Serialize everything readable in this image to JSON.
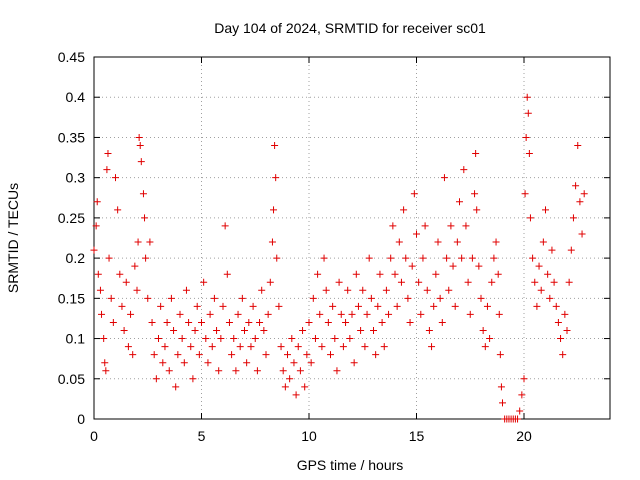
{
  "chart_data": {
    "type": "scatter",
    "title": "Day 104 of 2024, SRMTID for receiver sc01",
    "xlabel": "GPS time / hours",
    "ylabel": "SRMTID / TECUs",
    "xlim": [
      0,
      24
    ],
    "ylim": [
      0,
      0.45
    ],
    "x_ticks": [
      0,
      5,
      10,
      15,
      20
    ],
    "x_tick_labels": [
      "0",
      "5",
      "10",
      "15",
      "20"
    ],
    "y_ticks": [
      0,
      0.05,
      0.1,
      0.15,
      0.2,
      0.25,
      0.3,
      0.35,
      0.4,
      0.45
    ],
    "y_tick_labels": [
      "0",
      "0.05",
      "0.1",
      "0.15",
      "0.2",
      "0.25",
      "0.3",
      "0.35",
      "0.4",
      "0.45"
    ],
    "grid": true,
    "marker": "+",
    "color": "#e00000",
    "series": [
      {
        "name": "SRMTID",
        "points": [
          [
            0.0,
            0.21
          ],
          [
            0.1,
            0.24
          ],
          [
            0.15,
            0.27
          ],
          [
            0.2,
            0.18
          ],
          [
            0.3,
            0.16
          ],
          [
            0.35,
            0.13
          ],
          [
            0.45,
            0.1
          ],
          [
            0.5,
            0.07
          ],
          [
            0.55,
            0.06
          ],
          [
            0.6,
            0.31
          ],
          [
            0.65,
            0.33
          ],
          [
            0.7,
            0.2
          ],
          [
            0.8,
            0.15
          ],
          [
            0.9,
            0.12
          ],
          [
            1.0,
            0.3
          ],
          [
            1.1,
            0.26
          ],
          [
            1.2,
            0.18
          ],
          [
            1.3,
            0.14
          ],
          [
            1.4,
            0.11
          ],
          [
            1.5,
            0.17
          ],
          [
            1.6,
            0.09
          ],
          [
            1.7,
            0.13
          ],
          [
            1.8,
            0.08
          ],
          [
            1.9,
            0.19
          ],
          [
            2.0,
            0.16
          ],
          [
            2.05,
            0.22
          ],
          [
            2.1,
            0.35
          ],
          [
            2.15,
            0.34
          ],
          [
            2.2,
            0.32
          ],
          [
            2.3,
            0.28
          ],
          [
            2.35,
            0.25
          ],
          [
            2.4,
            0.2
          ],
          [
            2.5,
            0.15
          ],
          [
            2.6,
            0.22
          ],
          [
            2.7,
            0.12
          ],
          [
            2.8,
            0.08
          ],
          [
            2.9,
            0.05
          ],
          [
            3.0,
            0.1
          ],
          [
            3.1,
            0.14
          ],
          [
            3.2,
            0.07
          ],
          [
            3.3,
            0.09
          ],
          [
            3.4,
            0.12
          ],
          [
            3.5,
            0.06
          ],
          [
            3.6,
            0.15
          ],
          [
            3.7,
            0.11
          ],
          [
            3.8,
            0.04
          ],
          [
            3.9,
            0.08
          ],
          [
            4.0,
            0.13
          ],
          [
            4.1,
            0.1
          ],
          [
            4.2,
            0.07
          ],
          [
            4.3,
            0.16
          ],
          [
            4.4,
            0.12
          ],
          [
            4.5,
            0.09
          ],
          [
            4.6,
            0.05
          ],
          [
            4.7,
            0.11
          ],
          [
            4.8,
            0.14
          ],
          [
            4.9,
            0.08
          ],
          [
            5.0,
            0.12
          ],
          [
            5.1,
            0.17
          ],
          [
            5.2,
            0.1
          ],
          [
            5.3,
            0.07
          ],
          [
            5.4,
            0.13
          ],
          [
            5.5,
            0.09
          ],
          [
            5.6,
            0.15
          ],
          [
            5.7,
            0.11
          ],
          [
            5.8,
            0.06
          ],
          [
            5.9,
            0.1
          ],
          [
            6.0,
            0.14
          ],
          [
            6.1,
            0.24
          ],
          [
            6.2,
            0.18
          ],
          [
            6.3,
            0.12
          ],
          [
            6.4,
            0.08
          ],
          [
            6.5,
            0.1
          ],
          [
            6.6,
            0.06
          ],
          [
            6.7,
            0.13
          ],
          [
            6.8,
            0.09
          ],
          [
            6.9,
            0.15
          ],
          [
            7.0,
            0.11
          ],
          [
            7.1,
            0.07
          ],
          [
            7.2,
            0.12
          ],
          [
            7.3,
            0.09
          ],
          [
            7.4,
            0.14
          ],
          [
            7.5,
            0.1
          ],
          [
            7.6,
            0.06
          ],
          [
            7.7,
            0.12
          ],
          [
            7.8,
            0.16
          ],
          [
            7.9,
            0.11
          ],
          [
            8.0,
            0.08
          ],
          [
            8.1,
            0.13
          ],
          [
            8.2,
            0.17
          ],
          [
            8.3,
            0.22
          ],
          [
            8.35,
            0.26
          ],
          [
            8.4,
            0.34
          ],
          [
            8.45,
            0.3
          ],
          [
            8.5,
            0.2
          ],
          [
            8.6,
            0.14
          ],
          [
            8.7,
            0.09
          ],
          [
            8.8,
            0.06
          ],
          [
            8.9,
            0.04
          ],
          [
            9.0,
            0.08
          ],
          [
            9.1,
            0.05
          ],
          [
            9.2,
            0.1
          ],
          [
            9.3,
            0.07
          ],
          [
            9.4,
            0.03
          ],
          [
            9.5,
            0.09
          ],
          [
            9.6,
            0.06
          ],
          [
            9.7,
            0.11
          ],
          [
            9.8,
            0.04
          ],
          [
            9.9,
            0.08
          ],
          [
            10.0,
            0.12
          ],
          [
            10.1,
            0.07
          ],
          [
            10.2,
            0.15
          ],
          [
            10.3,
            0.1
          ],
          [
            10.4,
            0.18
          ],
          [
            10.5,
            0.13
          ],
          [
            10.6,
            0.09
          ],
          [
            10.7,
            0.2
          ],
          [
            10.8,
            0.16
          ],
          [
            10.9,
            0.12
          ],
          [
            11.0,
            0.08
          ],
          [
            11.1,
            0.14
          ],
          [
            11.2,
            0.1
          ],
          [
            11.3,
            0.06
          ],
          [
            11.4,
            0.17
          ],
          [
            11.5,
            0.13
          ],
          [
            11.6,
            0.09
          ],
          [
            11.7,
            0.12
          ],
          [
            11.8,
            0.16
          ],
          [
            11.9,
            0.1
          ],
          [
            12.0,
            0.13
          ],
          [
            12.1,
            0.07
          ],
          [
            12.2,
            0.18
          ],
          [
            12.3,
            0.14
          ],
          [
            12.4,
            0.11
          ],
          [
            12.5,
            0.16
          ],
          [
            12.6,
            0.09
          ],
          [
            12.7,
            0.13
          ],
          [
            12.8,
            0.2
          ],
          [
            12.9,
            0.15
          ],
          [
            13.0,
            0.11
          ],
          [
            13.1,
            0.08
          ],
          [
            13.2,
            0.14
          ],
          [
            13.3,
            0.18
          ],
          [
            13.4,
            0.12
          ],
          [
            13.5,
            0.09
          ],
          [
            13.6,
            0.16
          ],
          [
            13.7,
            0.13
          ],
          [
            13.8,
            0.2
          ],
          [
            13.9,
            0.24
          ],
          [
            14.0,
            0.18
          ],
          [
            14.1,
            0.14
          ],
          [
            14.2,
            0.22
          ],
          [
            14.3,
            0.17
          ],
          [
            14.4,
            0.26
          ],
          [
            14.5,
            0.2
          ],
          [
            14.6,
            0.15
          ],
          [
            14.7,
            0.12
          ],
          [
            14.8,
            0.19
          ],
          [
            14.9,
            0.28
          ],
          [
            15.0,
            0.23
          ],
          [
            15.1,
            0.17
          ],
          [
            15.2,
            0.13
          ],
          [
            15.3,
            0.2
          ],
          [
            15.4,
            0.24
          ],
          [
            15.5,
            0.16
          ],
          [
            15.6,
            0.11
          ],
          [
            15.7,
            0.09
          ],
          [
            15.8,
            0.14
          ],
          [
            15.9,
            0.18
          ],
          [
            16.0,
            0.22
          ],
          [
            16.1,
            0.15
          ],
          [
            16.2,
            0.12
          ],
          [
            16.3,
            0.3
          ],
          [
            16.4,
            0.2
          ],
          [
            16.5,
            0.16
          ],
          [
            16.6,
            0.24
          ],
          [
            16.7,
            0.19
          ],
          [
            16.8,
            0.14
          ],
          [
            16.9,
            0.22
          ],
          [
            17.0,
            0.27
          ],
          [
            17.1,
            0.2
          ],
          [
            17.2,
            0.31
          ],
          [
            17.3,
            0.24
          ],
          [
            17.4,
            0.17
          ],
          [
            17.5,
            0.13
          ],
          [
            17.6,
            0.2
          ],
          [
            17.7,
            0.28
          ],
          [
            17.75,
            0.33
          ],
          [
            17.8,
            0.26
          ],
          [
            17.9,
            0.19
          ],
          [
            18.0,
            0.15
          ],
          [
            18.1,
            0.11
          ],
          [
            18.2,
            0.09
          ],
          [
            18.3,
            0.14
          ],
          [
            18.4,
            0.1
          ],
          [
            18.5,
            0.17
          ],
          [
            18.6,
            0.2
          ],
          [
            18.7,
            0.22
          ],
          [
            18.8,
            0.18
          ],
          [
            18.85,
            0.13
          ],
          [
            18.9,
            0.08
          ],
          [
            18.95,
            0.04
          ],
          [
            19.0,
            0.02
          ],
          [
            19.1,
            0.0
          ],
          [
            19.2,
            0.0
          ],
          [
            19.3,
            0.0
          ],
          [
            19.4,
            0.0
          ],
          [
            19.5,
            0.0
          ],
          [
            19.6,
            0.0
          ],
          [
            19.7,
            0.0
          ],
          [
            19.8,
            0.01
          ],
          [
            19.9,
            0.03
          ],
          [
            20.0,
            0.05
          ],
          [
            20.05,
            0.28
          ],
          [
            20.1,
            0.35
          ],
          [
            20.15,
            0.4
          ],
          [
            20.2,
            0.38
          ],
          [
            20.25,
            0.33
          ],
          [
            20.3,
            0.25
          ],
          [
            20.4,
            0.2
          ],
          [
            20.5,
            0.17
          ],
          [
            20.6,
            0.14
          ],
          [
            20.7,
            0.19
          ],
          [
            20.8,
            0.16
          ],
          [
            20.9,
            0.22
          ],
          [
            21.0,
            0.26
          ],
          [
            21.1,
            0.18
          ],
          [
            21.2,
            0.15
          ],
          [
            21.3,
            0.21
          ],
          [
            21.4,
            0.17
          ],
          [
            21.5,
            0.14
          ],
          [
            21.6,
            0.12
          ],
          [
            21.7,
            0.1
          ],
          [
            21.8,
            0.08
          ],
          [
            21.9,
            0.13
          ],
          [
            22.0,
            0.11
          ],
          [
            22.1,
            0.17
          ],
          [
            22.2,
            0.21
          ],
          [
            22.3,
            0.25
          ],
          [
            22.4,
            0.29
          ],
          [
            22.5,
            0.34
          ],
          [
            22.6,
            0.27
          ],
          [
            22.7,
            0.23
          ],
          [
            22.8,
            0.28
          ]
        ]
      }
    ]
  }
}
